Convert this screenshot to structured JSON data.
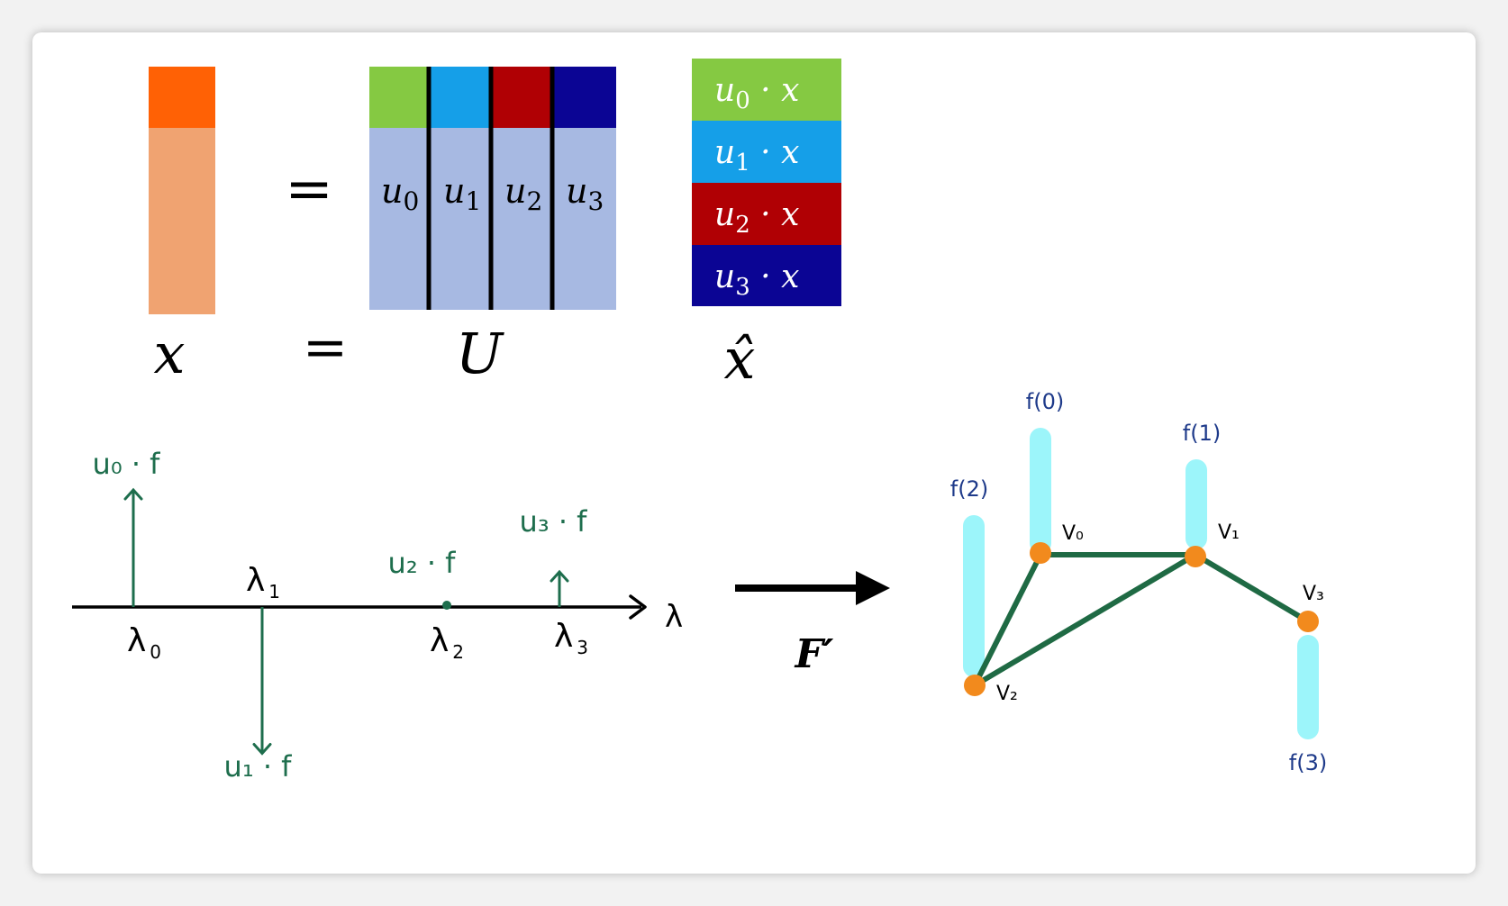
{
  "colors": {
    "x_top": "#ff6105",
    "x_body": "#f0a371",
    "u0": "#85c942",
    "u1": "#159fe8",
    "u2": "#b00004",
    "u3": "#0b0594",
    "matrix_body": "#a7b9e2",
    "spectrum_green": "#1e6e4d",
    "graph_edge": "#1f6a44",
    "graph_node": "#f28a1d",
    "signal_bar": "#9cf5fa",
    "signal_label": "#1e3a8a"
  },
  "equation": {
    "equals": "=",
    "x_label": "x",
    "U_label": "U",
    "xhat_label": "x̂",
    "columns": [
      {
        "sym": "u",
        "sub": "0"
      },
      {
        "sym": "u",
        "sub": "1"
      },
      {
        "sym": "u",
        "sub": "2"
      },
      {
        "sym": "u",
        "sub": "3"
      }
    ],
    "products": [
      {
        "sym": "u",
        "sub": "0",
        "rest": " · x"
      },
      {
        "sym": "u",
        "sub": "1",
        "rest": " · x"
      },
      {
        "sym": "u",
        "sub": "2",
        "rest": " · x"
      },
      {
        "sym": "u",
        "sub": "3",
        "rest": " · x"
      }
    ]
  },
  "spectrum": {
    "axis_label": "λ",
    "ticks": [
      {
        "label": "λ",
        "sub": "0",
        "value_label": "u₀ · f",
        "sign": 1,
        "magnitude": 1.0
      },
      {
        "label": "λ",
        "sub": "1",
        "value_label": "u₁ · f",
        "sign": -1,
        "magnitude": 1.25
      },
      {
        "label": "λ",
        "sub": "2",
        "value_label": "u₂ · f",
        "sign": 0,
        "magnitude": 0.0
      },
      {
        "label": "λ",
        "sub": "3",
        "value_label": "u₃ · f",
        "sign": 1,
        "magnitude": 0.3
      }
    ]
  },
  "transform": {
    "label": "F′"
  },
  "graph": {
    "nodes": [
      {
        "label": "V₀",
        "signal_label": "f(0)"
      },
      {
        "label": "V₁",
        "signal_label": "f(1)"
      },
      {
        "label": "V₂",
        "signal_label": "f(2)"
      },
      {
        "label": "V₃",
        "signal_label": "f(3)"
      }
    ]
  }
}
